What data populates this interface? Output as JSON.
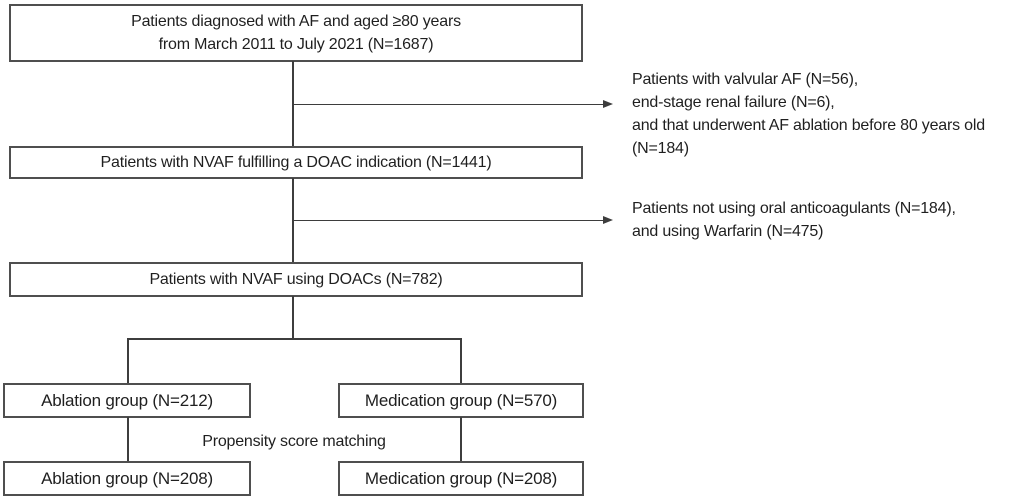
{
  "figure": {
    "colors": {
      "border": "#4f4f4f",
      "line": "#3d3d3d",
      "text": "#1f1f1f",
      "background": "#ffffff"
    },
    "boxes": {
      "diagnosed": {
        "line1": "Patients diagnosed with AF and aged ≥80 years",
        "line2": "from March 2011 to July 2021 (N=1687)"
      },
      "nvaf_doac_indication": "Patients with NVAF fulfilling a DOAC indication (N=1441)",
      "nvaf_using_doacs": "Patients with NVAF using DOACs (N=782)",
      "ablation_pre_match": "Ablation group (N=212)",
      "medication_pre_match": "Medication group (N=570)",
      "ablation_post_match": "Ablation group (N=208)",
      "medication_post_match": "Medication group (N=208)"
    },
    "exclusions": {
      "first": {
        "line1": "Patients with valvular AF (N=56),",
        "line2": "end-stage renal failure (N=6),",
        "line3": "and that underwent AF ablation before 80 years old",
        "line4": "(N=184)"
      },
      "second": {
        "line1": "Patients not using oral anticoagulants (N=184),",
        "line2": "and using Warfarin (N=475)"
      }
    },
    "labels": {
      "propensity": "Propensity score matching"
    }
  }
}
